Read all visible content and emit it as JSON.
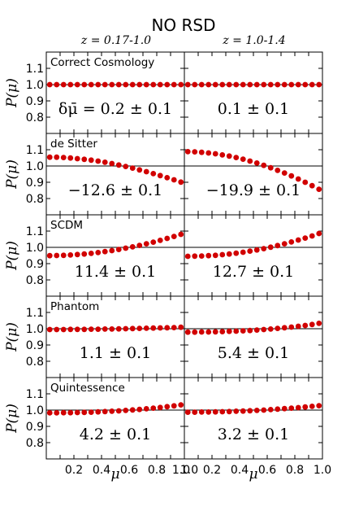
{
  "figure": {
    "title": "NO RSD",
    "column_titles": [
      "z = 0.17-1.0",
      "z = 1.0-1.4"
    ],
    "ylabel": "P(μ)",
    "xlabel": "μ"
  },
  "colors": {
    "points": "#d10000",
    "reference_line": "#000000",
    "frame": "#000000"
  },
  "chart_data": {
    "type": "scatter",
    "x": [
      0.025,
      0.075,
      0.125,
      0.175,
      0.225,
      0.275,
      0.325,
      0.375,
      0.425,
      0.475,
      0.525,
      0.575,
      0.625,
      0.675,
      0.725,
      0.775,
      0.825,
      0.875,
      0.925,
      0.975
    ],
    "xlim": [
      0,
      1
    ],
    "ylim": [
      0.7,
      1.2
    ],
    "x_ticks": {
      "left": [
        "0.2",
        "0.4",
        "0.6",
        "0.8",
        "1.0"
      ],
      "right": [
        "1.0",
        "0.2",
        "0.4",
        "0.6",
        "0.8",
        "1.0"
      ]
    },
    "y_ticks": [
      "0.8",
      "0.9",
      "1.0",
      "1.1"
    ],
    "reference_line": 1.0,
    "rows": [
      {
        "label": "Correct Cosmology",
        "panels": [
          {
            "annotation": "δμ̄ = 0.2 ± 0.1",
            "values": [
              1.0,
              1.0,
              1.0,
              1.0,
              1.0,
              1.0,
              1.0,
              1.0,
              1.0,
              1.0,
              1.0,
              1.0,
              1.0,
              1.0,
              1.0,
              1.0,
              1.0,
              1.0,
              1.0,
              1.0
            ]
          },
          {
            "annotation": "0.1 ± 0.1",
            "values": [
              1.0,
              1.0,
              1.0,
              1.0,
              1.0,
              1.0,
              1.0,
              1.0,
              1.0,
              1.0,
              1.0,
              1.0,
              1.0,
              1.0,
              1.0,
              1.0,
              1.0,
              1.0,
              1.0,
              1.0
            ]
          }
        ]
      },
      {
        "label": "de Sitter",
        "panels": [
          {
            "annotation": "−12.6 ± 0.1",
            "values": [
              1.054,
              1.054,
              1.052,
              1.049,
              1.045,
              1.041,
              1.036,
              1.03,
              1.023,
              1.015,
              1.006,
              0.997,
              0.987,
              0.976,
              0.965,
              0.953,
              0.941,
              0.928,
              0.915,
              0.901
            ]
          },
          {
            "annotation": "−19.9 ± 0.1",
            "values": [
              1.088,
              1.087,
              1.084,
              1.08,
              1.075,
              1.068,
              1.061,
              1.052,
              1.042,
              1.03,
              1.018,
              1.004,
              0.989,
              0.973,
              0.957,
              0.939,
              0.92,
              0.9,
              0.879,
              0.857
            ]
          }
        ]
      },
      {
        "label": "SCDM",
        "panels": [
          {
            "annotation": "11.4 ± 0.1",
            "values": [
              0.949,
              0.95,
              0.951,
              0.953,
              0.956,
              0.959,
              0.963,
              0.968,
              0.974,
              0.98,
              0.987,
              0.995,
              1.003,
              1.012,
              1.022,
              1.032,
              1.043,
              1.055,
              1.067,
              1.08
            ]
          },
          {
            "annotation": "12.7 ± 0.1",
            "values": [
              0.945,
              0.946,
              0.947,
              0.949,
              0.951,
              0.955,
              0.959,
              0.964,
              0.97,
              0.977,
              0.984,
              0.992,
              1.001,
              1.011,
              1.022,
              1.033,
              1.045,
              1.057,
              1.07,
              1.085
            ]
          }
        ]
      },
      {
        "label": "Phantom",
        "panels": [
          {
            "annotation": "1.1 ± 0.1",
            "values": [
              0.995,
              0.995,
              0.995,
              0.996,
              0.996,
              0.996,
              0.997,
              0.997,
              0.998,
              0.998,
              0.999,
              1.0,
              1.001,
              1.002,
              1.003,
              1.004,
              1.005,
              1.006,
              1.007,
              1.009
            ]
          },
          {
            "annotation": "5.4 ± 0.1",
            "values": [
              0.979,
              0.979,
              0.98,
              0.98,
              0.981,
              0.982,
              0.984,
              0.985,
              0.987,
              0.989,
              0.992,
              0.995,
              0.998,
              1.002,
              1.006,
              1.01,
              1.015,
              1.02,
              1.026,
              1.033
            ]
          }
        ]
      },
      {
        "label": "Quintessence",
        "panels": [
          {
            "annotation": "4.2 ± 0.1",
            "values": [
              0.983,
              0.983,
              0.984,
              0.984,
              0.985,
              0.986,
              0.987,
              0.989,
              0.991,
              0.993,
              0.995,
              0.998,
              1.001,
              1.004,
              1.008,
              1.012,
              1.016,
              1.021,
              1.026,
              1.032
            ]
          },
          {
            "annotation": "3.2 ± 0.1",
            "values": [
              0.987,
              0.987,
              0.988,
              0.988,
              0.989,
              0.99,
              0.991,
              0.993,
              0.994,
              0.996,
              0.998,
              1.0,
              1.003,
              1.006,
              1.009,
              1.012,
              1.015,
              1.019,
              1.023,
              1.027
            ]
          }
        ]
      }
    ]
  }
}
